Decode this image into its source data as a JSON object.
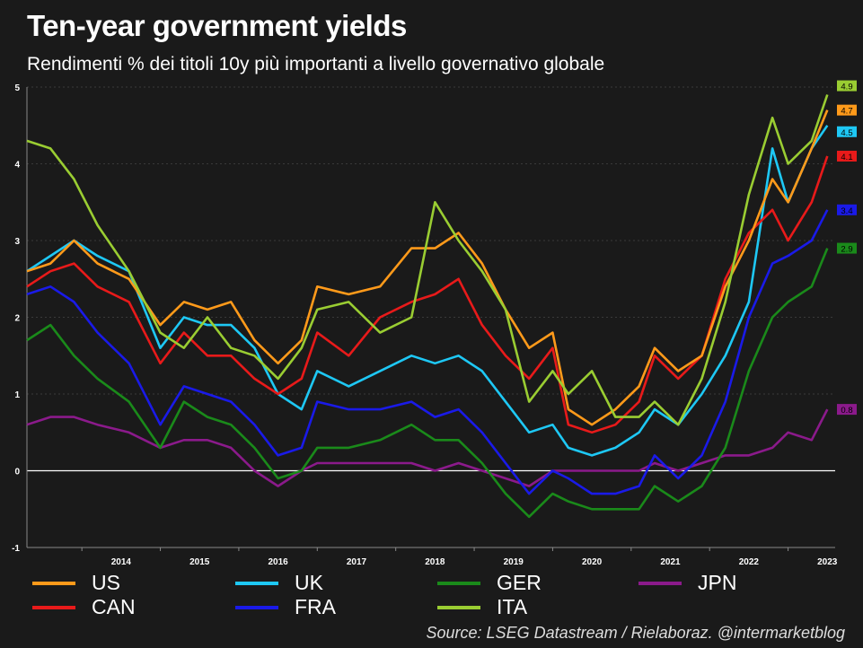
{
  "header": {
    "title": "Ten-year government yields",
    "subtitle": "Rendimenti % dei titoli 10y più importanti a livello governativo globale"
  },
  "source": "Source: LSEG Datastream / Rielaboraz. @intermarketblog",
  "chart_data": {
    "type": "line",
    "title": "Ten-year government yields",
    "subtitle": "Rendimenti % dei titoli 10y più importanti a livello governativo globale",
    "xlabel": "",
    "ylabel": "",
    "x_ticks": [
      "2014",
      "2015",
      "2016",
      "2017",
      "2018",
      "2019",
      "2020",
      "2021",
      "2022",
      "2023"
    ],
    "y_ticks": [
      "-1",
      "0",
      "1",
      "2",
      "3",
      "4",
      "5"
    ],
    "ylim": [
      -1,
      5
    ],
    "xlim": [
      2013.3,
      2023.6
    ],
    "grid": "horizontal dotted",
    "zero_line": true,
    "legend_position": "bottom",
    "series": [
      {
        "name": "US",
        "color": "#ff9a1a",
        "last_label": "4.7",
        "x": [
          2013.3,
          2013.6,
          2013.9,
          2014.2,
          2014.6,
          2015.0,
          2015.3,
          2015.6,
          2015.9,
          2016.2,
          2016.5,
          2016.8,
          2017.0,
          2017.4,
          2017.8,
          2018.2,
          2018.5,
          2018.8,
          2019.1,
          2019.4,
          2019.7,
          2020.0,
          2020.2,
          2020.5,
          2020.8,
          2021.1,
          2021.3,
          2021.6,
          2021.9,
          2022.2,
          2022.5,
          2022.8,
          2023.0,
          2023.3,
          2023.5
        ],
        "y": [
          2.6,
          2.7,
          3.0,
          2.7,
          2.5,
          1.9,
          2.2,
          2.1,
          2.2,
          1.7,
          1.4,
          1.7,
          2.4,
          2.3,
          2.4,
          2.9,
          2.9,
          3.1,
          2.7,
          2.1,
          1.6,
          1.8,
          0.8,
          0.6,
          0.8,
          1.1,
          1.6,
          1.3,
          1.5,
          2.4,
          3.0,
          3.8,
          3.5,
          4.2,
          4.7
        ]
      },
      {
        "name": "UK",
        "color": "#1ec8f5",
        "last_label": "4.5",
        "x": [
          2013.3,
          2013.6,
          2013.9,
          2014.2,
          2014.6,
          2015.0,
          2015.3,
          2015.6,
          2015.9,
          2016.2,
          2016.5,
          2016.8,
          2017.0,
          2017.4,
          2017.8,
          2018.2,
          2018.5,
          2018.8,
          2019.1,
          2019.4,
          2019.7,
          2020.0,
          2020.2,
          2020.5,
          2020.8,
          2021.1,
          2021.3,
          2021.6,
          2021.9,
          2022.2,
          2022.5,
          2022.8,
          2023.0,
          2023.3,
          2023.5
        ],
        "y": [
          2.6,
          2.8,
          3.0,
          2.8,
          2.6,
          1.6,
          2.0,
          1.9,
          1.9,
          1.6,
          1.0,
          0.8,
          1.3,
          1.1,
          1.3,
          1.5,
          1.4,
          1.5,
          1.3,
          0.9,
          0.5,
          0.6,
          0.3,
          0.2,
          0.3,
          0.5,
          0.8,
          0.6,
          1.0,
          1.5,
          2.2,
          4.2,
          3.5,
          4.2,
          4.5
        ]
      },
      {
        "name": "GER",
        "color": "#1a8a1a",
        "last_label": "2.9",
        "x": [
          2013.3,
          2013.6,
          2013.9,
          2014.2,
          2014.6,
          2015.0,
          2015.3,
          2015.6,
          2015.9,
          2016.2,
          2016.5,
          2016.8,
          2017.0,
          2017.4,
          2017.8,
          2018.2,
          2018.5,
          2018.8,
          2019.1,
          2019.4,
          2019.7,
          2020.0,
          2020.2,
          2020.5,
          2020.8,
          2021.1,
          2021.3,
          2021.6,
          2021.9,
          2022.2,
          2022.5,
          2022.8,
          2023.0,
          2023.3,
          2023.5
        ],
        "y": [
          1.7,
          1.9,
          1.5,
          1.2,
          0.9,
          0.3,
          0.9,
          0.7,
          0.6,
          0.3,
          -0.1,
          0.0,
          0.3,
          0.3,
          0.4,
          0.6,
          0.4,
          0.4,
          0.1,
          -0.3,
          -0.6,
          -0.3,
          -0.4,
          -0.5,
          -0.5,
          -0.5,
          -0.2,
          -0.4,
          -0.2,
          0.3,
          1.3,
          2.0,
          2.2,
          2.4,
          2.9
        ]
      },
      {
        "name": "JPN",
        "color": "#8b1a8b",
        "last_label": "0.8",
        "x": [
          2013.3,
          2013.6,
          2013.9,
          2014.2,
          2014.6,
          2015.0,
          2015.3,
          2015.6,
          2015.9,
          2016.2,
          2016.5,
          2016.8,
          2017.0,
          2017.4,
          2017.8,
          2018.2,
          2018.5,
          2018.8,
          2019.1,
          2019.4,
          2019.7,
          2020.0,
          2020.2,
          2020.5,
          2020.8,
          2021.1,
          2021.3,
          2021.6,
          2021.9,
          2022.2,
          2022.5,
          2022.8,
          2023.0,
          2023.3,
          2023.5
        ],
        "y": [
          0.6,
          0.7,
          0.7,
          0.6,
          0.5,
          0.3,
          0.4,
          0.4,
          0.3,
          0.0,
          -0.2,
          0.0,
          0.1,
          0.1,
          0.1,
          0.1,
          0.0,
          0.1,
          0.0,
          -0.1,
          -0.2,
          0.0,
          0.0,
          0.0,
          0.0,
          0.0,
          0.1,
          0.0,
          0.1,
          0.2,
          0.2,
          0.3,
          0.5,
          0.4,
          0.8
        ]
      },
      {
        "name": "CAN",
        "color": "#e81a1a",
        "last_label": "4.1",
        "x": [
          2013.3,
          2013.6,
          2013.9,
          2014.2,
          2014.6,
          2015.0,
          2015.3,
          2015.6,
          2015.9,
          2016.2,
          2016.5,
          2016.8,
          2017.0,
          2017.4,
          2017.8,
          2018.2,
          2018.5,
          2018.8,
          2019.1,
          2019.4,
          2019.7,
          2020.0,
          2020.2,
          2020.5,
          2020.8,
          2021.1,
          2021.3,
          2021.6,
          2021.9,
          2022.2,
          2022.5,
          2022.8,
          2023.0,
          2023.3,
          2023.5
        ],
        "y": [
          2.4,
          2.6,
          2.7,
          2.4,
          2.2,
          1.4,
          1.8,
          1.5,
          1.5,
          1.2,
          1.0,
          1.2,
          1.8,
          1.5,
          2.0,
          2.2,
          2.3,
          2.5,
          1.9,
          1.5,
          1.2,
          1.6,
          0.6,
          0.5,
          0.6,
          0.9,
          1.5,
          1.2,
          1.5,
          2.5,
          3.1,
          3.4,
          3.0,
          3.5,
          4.1
        ]
      },
      {
        "name": "FRA",
        "color": "#1a1ae8",
        "last_label": "3.4",
        "x": [
          2013.3,
          2013.6,
          2013.9,
          2014.2,
          2014.6,
          2015.0,
          2015.3,
          2015.6,
          2015.9,
          2016.2,
          2016.5,
          2016.8,
          2017.0,
          2017.4,
          2017.8,
          2018.2,
          2018.5,
          2018.8,
          2019.1,
          2019.4,
          2019.7,
          2020.0,
          2020.2,
          2020.5,
          2020.8,
          2021.1,
          2021.3,
          2021.6,
          2021.9,
          2022.2,
          2022.5,
          2022.8,
          2023.0,
          2023.3,
          2023.5
        ],
        "y": [
          2.3,
          2.4,
          2.2,
          1.8,
          1.4,
          0.6,
          1.1,
          1.0,
          0.9,
          0.6,
          0.2,
          0.3,
          0.9,
          0.8,
          0.8,
          0.9,
          0.7,
          0.8,
          0.5,
          0.1,
          -0.3,
          0.0,
          -0.1,
          -0.3,
          -0.3,
          -0.2,
          0.2,
          -0.1,
          0.2,
          0.9,
          2.0,
          2.7,
          2.8,
          3.0,
          3.4
        ]
      },
      {
        "name": "ITA",
        "color": "#9acd32",
        "last_label": "4.9",
        "x": [
          2013.3,
          2013.6,
          2013.9,
          2014.2,
          2014.6,
          2015.0,
          2015.3,
          2015.6,
          2015.9,
          2016.2,
          2016.5,
          2016.8,
          2017.0,
          2017.4,
          2017.8,
          2018.2,
          2018.5,
          2018.8,
          2019.1,
          2019.4,
          2019.7,
          2020.0,
          2020.2,
          2020.5,
          2020.8,
          2021.1,
          2021.3,
          2021.6,
          2021.9,
          2022.2,
          2022.5,
          2022.8,
          2023.0,
          2023.3,
          2023.5
        ],
        "y": [
          4.3,
          4.2,
          3.8,
          3.2,
          2.6,
          1.8,
          1.6,
          2.0,
          1.6,
          1.5,
          1.2,
          1.6,
          2.1,
          2.2,
          1.8,
          2.0,
          3.5,
          3.0,
          2.6,
          2.1,
          0.9,
          1.3,
          1.0,
          1.3,
          0.7,
          0.7,
          0.9,
          0.6,
          1.2,
          2.2,
          3.6,
          4.6,
          4.0,
          4.3,
          4.9
        ]
      }
    ]
  }
}
